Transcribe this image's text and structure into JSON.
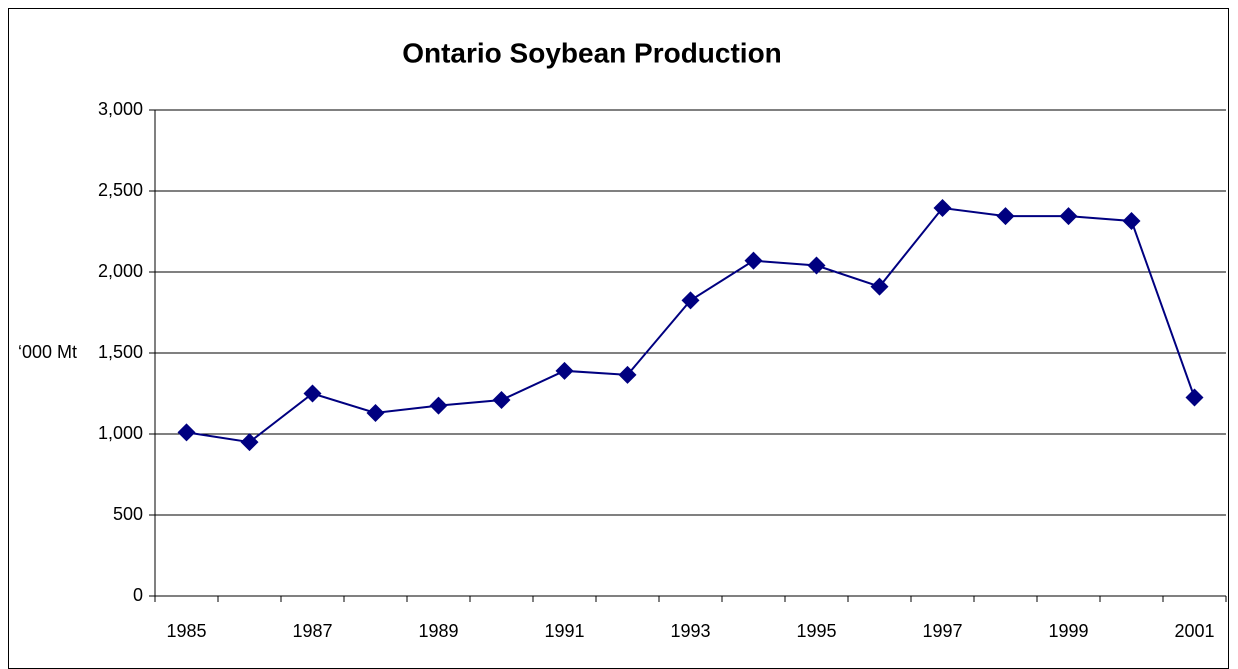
{
  "chart_data": {
    "type": "line",
    "title": "Ontario Soybean Production",
    "y_label": "‘000 Mt",
    "categories": [
      "1985",
      null,
      "1987",
      null,
      "1989",
      null,
      "1991",
      null,
      "1993",
      null,
      "1995",
      null,
      "1997",
      null,
      "1999",
      null,
      "2001"
    ],
    "series": [
      {
        "name": "Production",
        "color": "#000080",
        "values": [
          1010,
          950,
          1250,
          1130,
          1175,
          1210,
          1390,
          1365,
          1825,
          2070,
          2040,
          1910,
          2395,
          2345,
          2345,
          2315,
          1225
        ]
      }
    ],
    "ylim": [
      0,
      3000
    ],
    "yticks": [
      0,
      500,
      {
        "value": 1000,
        "label": "1,000"
      },
      {
        "value": 1500,
        "label": "1,500"
      },
      {
        "value": 2000,
        "label": "2,000"
      },
      {
        "value": 2500,
        "label": "2,500"
      },
      {
        "value": 3000,
        "label": "3,000"
      }
    ],
    "grid": true,
    "legend": false
  }
}
